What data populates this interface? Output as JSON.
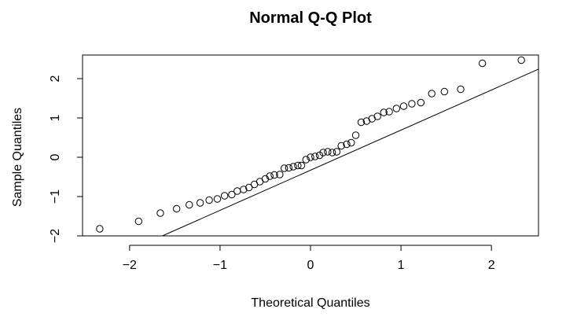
{
  "chart_data": {
    "type": "scatter",
    "title": "Normal Q-Q Plot",
    "xlabel": "Theoretical Quantiles",
    "ylabel": "Sample Quantiles",
    "xlim": [
      -2.52,
      2.52
    ],
    "ylim": [
      -2.0,
      2.6
    ],
    "xticks": [
      -2,
      -1,
      0,
      1,
      2
    ],
    "yticks": [
      -2,
      -1,
      0,
      1,
      2
    ],
    "grid": false,
    "reference_line": {
      "slope": 1.02,
      "intercept": -0.33
    },
    "x": [
      -2.33,
      -1.9,
      -1.66,
      -1.48,
      -1.34,
      -1.22,
      -1.12,
      -1.03,
      -0.95,
      -0.87,
      -0.81,
      -0.74,
      -0.68,
      -0.62,
      -0.56,
      -0.5,
      -0.45,
      -0.4,
      -0.34,
      -0.29,
      -0.24,
      -0.19,
      -0.14,
      -0.1,
      -0.05,
      0.0,
      0.05,
      0.1,
      0.14,
      0.19,
      0.24,
      0.29,
      0.34,
      0.4,
      0.45,
      0.5,
      0.56,
      0.62,
      0.68,
      0.74,
      0.81,
      0.87,
      0.95,
      1.03,
      1.12,
      1.22,
      1.34,
      1.48,
      1.66,
      1.9,
      2.33
    ],
    "y": [
      -1.82,
      -1.63,
      -1.42,
      -1.31,
      -1.21,
      -1.16,
      -1.09,
      -1.06,
      -0.98,
      -0.95,
      -0.86,
      -0.82,
      -0.77,
      -0.69,
      -0.62,
      -0.55,
      -0.48,
      -0.45,
      -0.44,
      -0.28,
      -0.27,
      -0.24,
      -0.21,
      -0.21,
      -0.06,
      0.0,
      0.02,
      0.05,
      0.12,
      0.14,
      0.12,
      0.14,
      0.29,
      0.33,
      0.37,
      0.56,
      0.89,
      0.92,
      0.98,
      1.04,
      1.14,
      1.16,
      1.24,
      1.3,
      1.36,
      1.39,
      1.62,
      1.67,
      1.73,
      2.39,
      2.47
    ]
  }
}
